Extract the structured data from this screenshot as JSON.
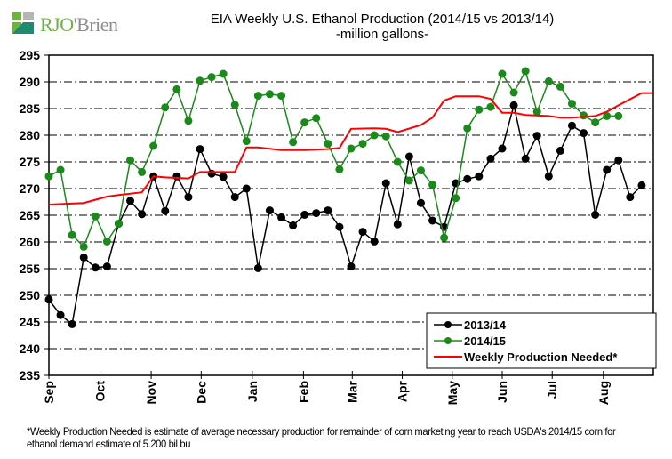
{
  "brand": {
    "name_part1": "RJO",
    "name_part2": "'Brien",
    "colors": {
      "green": "#6cb33f",
      "teal": "#1f8a70",
      "gray": "#8c8c8c"
    }
  },
  "footnote": "*Weekly Production Needed is estimate of average necessary production for remainder of corn marketing year to reach USDA's 2014/15 corn for ethanol demand estimate of 5.200 bil bu",
  "chart_data": {
    "type": "line",
    "title": "EIA Weekly U.S. Ethanol Production (2014/15 vs 2013/14)",
    "subtitle": "-million  gallons-",
    "xlabel": "",
    "ylabel": "",
    "ylim": [
      235,
      295
    ],
    "yticks": [
      235,
      240,
      245,
      250,
      255,
      260,
      265,
      270,
      275,
      280,
      285,
      290,
      295
    ],
    "xticks": [
      "Sep",
      "Oct",
      "Nov",
      "Dec",
      "Jan",
      "Feb",
      "Mar",
      "Apr",
      "May",
      "Jun",
      "Jul",
      "Aug"
    ],
    "x_unit": "weeks since Sep 1",
    "xlim": [
      0,
      52
    ],
    "xtick_positions": [
      0,
      4.4,
      8.8,
      13.1,
      17.5,
      21.9,
      26.1,
      30.4,
      34.7,
      39.0,
      43.3,
      47.7
    ],
    "grid": "horizontal dash-dot",
    "legend_position": "bottom-right",
    "series": [
      {
        "name": "2013/14",
        "color": "#000000",
        "marker": "circle",
        "x_start": 0,
        "values": [
          249.2,
          246.3,
          244.6,
          257.1,
          255.2,
          255.4,
          263.4,
          267.7,
          265.2,
          272.3,
          265.8,
          272.3,
          268.4,
          277.4,
          272.8,
          272.2,
          268.4,
          270.0,
          255.1,
          265.9,
          264.6,
          263.1,
          265.1,
          265.4,
          265.9,
          262.8,
          255.4,
          261.9,
          260.1,
          271.0,
          263.3,
          276.0,
          267.3,
          264.0,
          262.8,
          271.0,
          271.8,
          272.3,
          275.6,
          277.5,
          285.6,
          275.6,
          279.9,
          272.3,
          277.1,
          281.8,
          280.4,
          265.1,
          273.5,
          275.3,
          268.4,
          270.6
        ]
      },
      {
        "name": "2014/15",
        "color": "#1a8a1a",
        "marker": "circle",
        "x_start": 0,
        "values": [
          272.3,
          273.5,
          261.3,
          259.1,
          264.8,
          260.1,
          263.4,
          275.3,
          273.1,
          278.0,
          285.2,
          288.6,
          282.7,
          290.2,
          290.9,
          291.5,
          285.7,
          278.9,
          287.4,
          287.7,
          287.4,
          278.7,
          282.4,
          283.2,
          278.4,
          273.6,
          277.5,
          278.4,
          280.0,
          279.8,
          275.0,
          271.5,
          273.4,
          270.7,
          260.8,
          268.2,
          281.3,
          284.8,
          285.3,
          291.5,
          288.0,
          292.0,
          284.4,
          290.1,
          289.1,
          285.9,
          283.7,
          282.4,
          283.6,
          283.6
        ]
      },
      {
        "name": "Weekly Production Needed*",
        "color": "#ff0000",
        "marker": "none",
        "x": [
          0,
          3,
          4,
          5,
          6,
          8,
          9,
          10,
          12,
          13,
          15,
          16,
          17,
          18,
          20,
          22,
          24,
          25,
          26,
          28,
          29,
          30,
          32,
          33,
          34,
          35,
          37,
          38,
          39,
          40,
          41,
          43,
          44,
          45,
          47,
          48,
          49,
          51,
          52
        ],
        "values": [
          267.0,
          267.3,
          267.9,
          268.5,
          268.8,
          269.3,
          272.3,
          272.1,
          271.9,
          273.1,
          273.1,
          273.1,
          277.7,
          277.7,
          277.2,
          277.2,
          277.4,
          277.6,
          281.2,
          281.3,
          281.2,
          280.6,
          281.9,
          283.3,
          286.5,
          287.3,
          287.3,
          286.8,
          284.2,
          284.2,
          283.8,
          283.6,
          283.3,
          283.3,
          283.6,
          284.4,
          285.6,
          287.9,
          287.9
        ]
      }
    ]
  }
}
